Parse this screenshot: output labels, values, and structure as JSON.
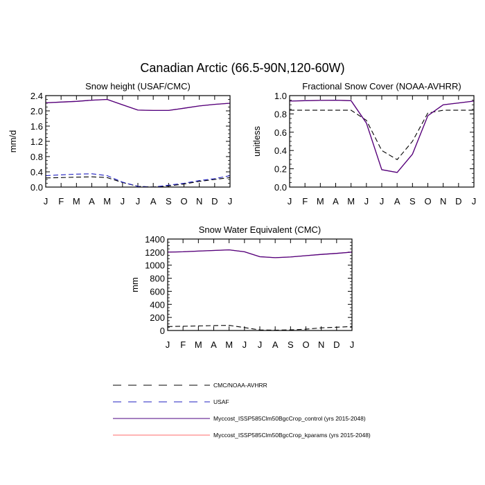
{
  "figure": {
    "title": "Canadian Arctic (66.5-90N,120-60W)",
    "legend": [
      {
        "label": "CMC/NOAA-AVHRR",
        "color": "#000000",
        "dash": "dashed"
      },
      {
        "label": "USAF",
        "color": "#1f1fbf",
        "dash": "dashed"
      },
      {
        "label": "Myccost_ISSP585Clm50BgcCrop_control (yrs 2015-2048)",
        "color": "#4b0082",
        "dash": "solid"
      },
      {
        "label": "Myccost_ISSP585Clm50BgcCrop_kparams (yrs 2015-2048)",
        "color": "#ff6a6a",
        "dash": "solid"
      }
    ]
  },
  "chart_data": [
    {
      "type": "line",
      "title": "Snow height (USAF/CMC)",
      "xlabel": "",
      "ylabel": "mm/d",
      "categories": [
        "J",
        "F",
        "M",
        "A",
        "M",
        "J",
        "J",
        "A",
        "S",
        "O",
        "N",
        "D",
        "J"
      ],
      "ylim": [
        0,
        2.4
      ],
      "yticks": [
        "0.0",
        "0.4",
        "0.8",
        "1.2",
        "1.6",
        "2.0",
        "2.4"
      ],
      "series": [
        {
          "name": "CMC/NOAA-AVHRR",
          "values": [
            0.24,
            0.25,
            0.26,
            0.27,
            0.25,
            0.12,
            0.02,
            0.0,
            0.03,
            0.08,
            0.15,
            0.2,
            0.25
          ]
        },
        {
          "name": "USAF",
          "values": [
            0.3,
            0.32,
            0.34,
            0.35,
            0.3,
            0.13,
            0.02,
            0.0,
            0.05,
            0.1,
            0.17,
            0.22,
            0.3
          ]
        },
        {
          "name": "Myccost_ISSP585Clm50BgcCrop_kparams (yrs 2015-2048)",
          "values": [
            2.21,
            2.23,
            2.25,
            2.28,
            2.3,
            2.16,
            2.02,
            2.01,
            2.01,
            2.07,
            2.13,
            2.17,
            2.2
          ]
        },
        {
          "name": "Myccost_ISSP585Clm50BgcCrop_control (yrs 2015-2048)",
          "values": [
            2.21,
            2.23,
            2.25,
            2.28,
            2.3,
            2.16,
            2.02,
            2.01,
            2.01,
            2.07,
            2.13,
            2.17,
            2.2
          ]
        }
      ]
    },
    {
      "type": "line",
      "title": "Fractional Snow Cover (NOAA-AVHRR)",
      "xlabel": "",
      "ylabel": "unitless",
      "categories": [
        "J",
        "F",
        "M",
        "A",
        "M",
        "J",
        "J",
        "A",
        "S",
        "O",
        "N",
        "D",
        "J"
      ],
      "ylim": [
        0,
        1.0
      ],
      "yticks": [
        "0.0",
        "0.2",
        "0.4",
        "0.6",
        "0.8",
        "1.0"
      ],
      "series": [
        {
          "name": "CMC/NOAA-AVHRR",
          "values": [
            0.84,
            0.84,
            0.84,
            0.84,
            0.84,
            0.73,
            0.4,
            0.3,
            0.5,
            0.81,
            0.84,
            0.84,
            0.84
          ]
        },
        {
          "name": "Myccost_ISSP585Clm50BgcCrop_kparams (yrs 2015-2048)",
          "values": [
            0.94,
            0.945,
            0.948,
            0.95,
            0.945,
            0.7,
            0.19,
            0.16,
            0.36,
            0.78,
            0.9,
            0.92,
            0.94
          ]
        },
        {
          "name": "Myccost_ISSP585Clm50BgcCrop_control (yrs 2015-2048)",
          "values": [
            0.94,
            0.945,
            0.948,
            0.95,
            0.945,
            0.7,
            0.19,
            0.16,
            0.36,
            0.78,
            0.9,
            0.92,
            0.94
          ]
        }
      ]
    },
    {
      "type": "line",
      "title": "Snow Water Equivalent (CMC)",
      "xlabel": "",
      "ylabel": "mm",
      "categories": [
        "J",
        "F",
        "M",
        "A",
        "M",
        "J",
        "J",
        "A",
        "S",
        "O",
        "N",
        "D",
        "J"
      ],
      "ylim": [
        0,
        1400
      ],
      "yticks": [
        "0",
        "200",
        "400",
        "600",
        "800",
        "1000",
        "1200",
        "1400"
      ],
      "series": [
        {
          "name": "CMC/NOAA-AVHRR",
          "values": [
            60,
            65,
            70,
            75,
            78,
            45,
            8,
            5,
            10,
            20,
            40,
            50,
            60
          ]
        },
        {
          "name": "Myccost_ISSP585Clm50BgcCrop_kparams (yrs 2015-2048)",
          "values": [
            1200,
            1205,
            1215,
            1225,
            1235,
            1205,
            1130,
            1115,
            1125,
            1145,
            1165,
            1180,
            1200
          ]
        },
        {
          "name": "Myccost_ISSP585Clm50BgcCrop_control (yrs 2015-2048)",
          "values": [
            1200,
            1205,
            1215,
            1225,
            1235,
            1205,
            1130,
            1115,
            1125,
            1145,
            1165,
            1180,
            1200
          ]
        }
      ]
    }
  ]
}
